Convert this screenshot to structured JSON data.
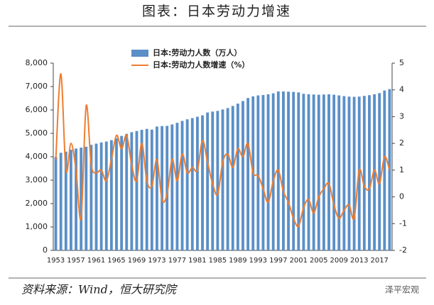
{
  "title": "图表：日本劳动力增速",
  "source": "资料来源：Wind，恒大研究院",
  "watermark": "泽平宏观",
  "chart_data": {
    "type": "bar_line",
    "categories": [
      "1953",
      null,
      null,
      null,
      "1957",
      null,
      null,
      null,
      "1961",
      null,
      null,
      null,
      "1965",
      null,
      null,
      null,
      "1969",
      null,
      null,
      null,
      "1973",
      null,
      null,
      null,
      "1977",
      null,
      null,
      null,
      "1981",
      null,
      null,
      null,
      "1985",
      null,
      null,
      null,
      "1989",
      null,
      null,
      null,
      "1993",
      null,
      null,
      null,
      "1997",
      null,
      null,
      null,
      "2001",
      null,
      null,
      null,
      "2005",
      null,
      null,
      null,
      "2009",
      null,
      null,
      null,
      "2013",
      null,
      null,
      null,
      "2017",
      null,
      null
    ],
    "series": [
      {
        "name": "日本:劳动力人数（万人）",
        "type": "bar",
        "color": "#5b8fc7",
        "values": [
          3989,
          4170,
          4220,
          4300,
          4350,
          4390,
          4430,
          4510,
          4560,
          4610,
          4650,
          4710,
          4790,
          4890,
          4980,
          5050,
          5100,
          5150,
          5190,
          5160,
          5290,
          5310,
          5320,
          5380,
          5450,
          5530,
          5600,
          5650,
          5710,
          5770,
          5890,
          5930,
          5960,
          6020,
          6080,
          6170,
          6270,
          6380,
          6510,
          6580,
          6620,
          6640,
          6670,
          6710,
          6790,
          6790,
          6780,
          6770,
          6750,
          6690,
          6670,
          6660,
          6650,
          6660,
          6670,
          6650,
          6620,
          6590,
          6570,
          6560,
          6570,
          6600,
          6630,
          6670,
          6720,
          6830,
          6890
        ]
      },
      {
        "name": "日本:劳动力人数增速（%）",
        "type": "line",
        "axis": "y2",
        "color": "#ed7d31",
        "values": [
          1.4,
          4.6,
          1.0,
          2.0,
          1.0,
          -0.8,
          3.4,
          1.2,
          0.9,
          1.0,
          0.6,
          1.4,
          2.3,
          1.8,
          2.3,
          1.2,
          0.6,
          2.0,
          0.6,
          0.4,
          1.4,
          -0.1,
          0.1,
          1.4,
          0.6,
          1.6,
          0.9,
          1.1,
          1.0,
          2.1,
          1.3,
          0.5,
          0.1,
          1.3,
          1.6,
          1.1,
          1.8,
          1.5,
          2.0,
          0.9,
          0.8,
          0.3,
          -0.2,
          0.6,
          1.0,
          0.2,
          -0.2,
          -0.8,
          -1.1,
          -0.4,
          -0.1,
          -0.6,
          0.0,
          0.3,
          0.5,
          -0.3,
          -0.8,
          -0.5,
          -0.3,
          -0.8,
          1.0,
          0.4,
          0.3,
          1.0,
          0.5,
          1.5,
          1.0
        ]
      }
    ],
    "ylim": [
      0,
      8000
    ],
    "yticks": [
      0,
      {
        "value": 1000,
        "label": "1,000"
      },
      {
        "value": 2000,
        "label": "2,000"
      },
      {
        "value": 3000,
        "label": "3,000"
      },
      {
        "value": 4000,
        "label": "4,000"
      },
      {
        "value": 5000,
        "label": "5,000"
      },
      {
        "value": 6000,
        "label": "6,000"
      },
      {
        "value": 7000,
        "label": "7,000"
      },
      {
        "value": 8000,
        "label": "8,000"
      }
    ],
    "y2lim": [
      -2,
      5
    ],
    "y2ticks": [
      -2,
      -1,
      0,
      1,
      2,
      3,
      4,
      5
    ]
  }
}
